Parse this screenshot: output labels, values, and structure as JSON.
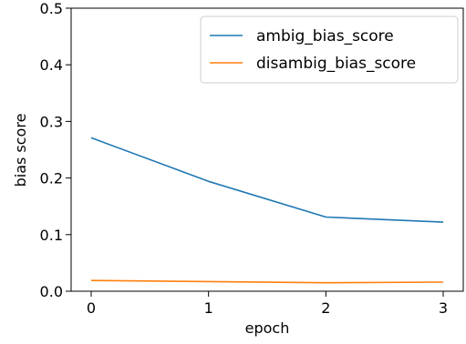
{
  "chart_data": {
    "type": "line",
    "title": "",
    "xlabel": "epoch",
    "ylabel": "bias score",
    "x": [
      0,
      1,
      2,
      3
    ],
    "xticks": [
      "0",
      "1",
      "2",
      "3"
    ],
    "yticks": [
      "0.0",
      "0.1",
      "0.2",
      "0.3",
      "0.4",
      "0.5"
    ],
    "ylim": [
      0,
      0.5
    ],
    "grid": false,
    "legend_position": "top-right",
    "series": [
      {
        "name": "ambig_bias_score",
        "color": "#1f77b4",
        "values": [
          0.271,
          0.194,
          0.131,
          0.122
        ]
      },
      {
        "name": "disambig_bias_score",
        "color": "#ff7f0e",
        "values": [
          0.019,
          0.017,
          0.015,
          0.016
        ]
      }
    ]
  }
}
